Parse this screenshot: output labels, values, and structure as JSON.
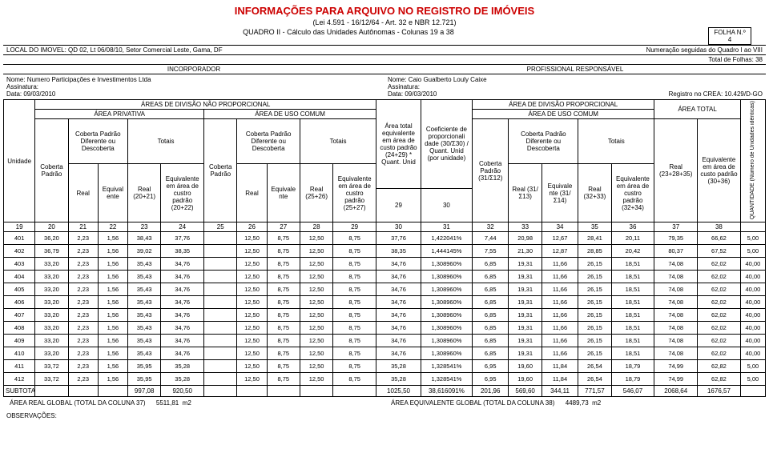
{
  "header": {
    "title": "INFORMAÇÕES PARA ARQUIVO NO REGISTRO DE IMÓVEIS",
    "law": "(Lei 4.591 - 16/12/64 - Art. 32 e NBR 12.721)",
    "quadro": "QUADRO II - Cálculo das Unidades Autônomas - Colunas 19 a 38",
    "folha_label": "FOLHA N.º",
    "folha_num": "4",
    "local": "LOCAL DO IMOVEL: QD 02, Lt 06/08/10, Setor Comercial Leste, Gama, DF",
    "numeracao": "Numeração seguidas do Quadro I ao VIII",
    "total_folhas": "Total de Folhas: 38",
    "incorporador_label": "INCORPORADOR",
    "profissional_label": "PROFISSIONAL RESPONSÁVEL",
    "incorp_nome": "Nome: Numero Participações e Investimentos Ltda",
    "prof_nome": "Nome: Caio Gualberto Louly Caixe",
    "assinatura": "Assinatura:",
    "data": "Data: 09/03/2010",
    "registro": "Registro no CREA: 10.429/D-GO"
  },
  "col_groups": {
    "areas_nao_prop": "ÁREAS DE DIVISÃO NÃO PROPORCIONAL",
    "area_prop": "ÁREA DE DIVISÃO PROPORCIONAL",
    "area_privativa": "ÁREA PRIVATIVA",
    "area_uso_comum": "ÁREA DE USO COMUM",
    "coberta_padrao": "Coberta Padrão Diferente ou Descoberta",
    "totais": "Totais",
    "area_total_eq": "Área total equivalente em área de custo padrão (24+29) * Quant. Unid",
    "coef": "Coeficiente de proporcionali dade (30/Σ30) / Quant. Unid (por unidade)",
    "area_total": "ÁREA TOTAL",
    "quantidade": "QUANTIDADE (Número de Unidades idênticas)"
  },
  "sub_headers": {
    "unidade": "Unidade",
    "coberta_padrao_col": "Coberta Padrão",
    "real": "Real",
    "equival_ente": "Equival ente",
    "real_20_21": "Real (20+21)",
    "eq_custo_20_22": "Equivalente em área de custro padrão (20+22)",
    "equivale_nte": "Equivale nte",
    "real_25_26": "Real (25+26)",
    "eq_custo_25_27": "Equivalente em área de custro padrão (25+27)",
    "coberta_padrao_31_12": "Coberta Padrão (31/Σ12)",
    "real_31_13": "Real (31/Σ13)",
    "equivale_nte_31_14": "Equivale nte (31/Σ14)",
    "real_32_33": "Real (32+33)",
    "eq_custo_32_34": "Equivalente em área de custro padrão (32+34)",
    "real_23_28_35": "Real (23+28+35)",
    "eq_custo_30_36": "Equivalente em área de custo padrão (30+36)"
  },
  "col_nums": [
    "19",
    "20",
    "21",
    "22",
    "23",
    "24",
    "25",
    "26",
    "27",
    "28",
    "29",
    "30",
    "31",
    "32",
    "33",
    "34",
    "35",
    "36",
    "37",
    "38"
  ],
  "rows": [
    [
      "401",
      "36,20",
      "2,23",
      "1,56",
      "38,43",
      "37,76",
      "",
      "12,50",
      "8,75",
      "12,50",
      "8,75",
      "37,76",
      "1,422041%",
      "7,44",
      "20,98",
      "12,67",
      "28,41",
      "20,11",
      "79,35",
      "66,62",
      "5,00"
    ],
    [
      "402",
      "36,79",
      "2,23",
      "1,56",
      "39,02",
      "38,35",
      "",
      "12,50",
      "8,75",
      "12,50",
      "8,75",
      "38,35",
      "1,444145%",
      "7,55",
      "21,30",
      "12,87",
      "28,85",
      "20,42",
      "80,37",
      "67,52",
      "5,00"
    ],
    [
      "403",
      "33,20",
      "2,23",
      "1,56",
      "35,43",
      "34,76",
      "",
      "12,50",
      "8,75",
      "12,50",
      "8,75",
      "34,76",
      "1,308960%",
      "6,85",
      "19,31",
      "11,66",
      "26,15",
      "18,51",
      "74,08",
      "62,02",
      "40,00"
    ],
    [
      "404",
      "33,20",
      "2,23",
      "1,56",
      "35,43",
      "34,76",
      "",
      "12,50",
      "8,75",
      "12,50",
      "8,75",
      "34,76",
      "1,308960%",
      "6,85",
      "19,31",
      "11,66",
      "26,15",
      "18,51",
      "74,08",
      "62,02",
      "40,00"
    ],
    [
      "405",
      "33,20",
      "2,23",
      "1,56",
      "35,43",
      "34,76",
      "",
      "12,50",
      "8,75",
      "12,50",
      "8,75",
      "34,76",
      "1,308960%",
      "6,85",
      "19,31",
      "11,66",
      "26,15",
      "18,51",
      "74,08",
      "62,02",
      "40,00"
    ],
    [
      "406",
      "33,20",
      "2,23",
      "1,56",
      "35,43",
      "34,76",
      "",
      "12,50",
      "8,75",
      "12,50",
      "8,75",
      "34,76",
      "1,308960%",
      "6,85",
      "19,31",
      "11,66",
      "26,15",
      "18,51",
      "74,08",
      "62,02",
      "40,00"
    ],
    [
      "407",
      "33,20",
      "2,23",
      "1,56",
      "35,43",
      "34,76",
      "",
      "12,50",
      "8,75",
      "12,50",
      "8,75",
      "34,76",
      "1,308960%",
      "6,85",
      "19,31",
      "11,66",
      "26,15",
      "18,51",
      "74,08",
      "62,02",
      "40,00"
    ],
    [
      "408",
      "33,20",
      "2,23",
      "1,56",
      "35,43",
      "34,76",
      "",
      "12,50",
      "8,75",
      "12,50",
      "8,75",
      "34,76",
      "1,308960%",
      "6,85",
      "19,31",
      "11,66",
      "26,15",
      "18,51",
      "74,08",
      "62,02",
      "40,00"
    ],
    [
      "409",
      "33,20",
      "2,23",
      "1,56",
      "35,43",
      "34,76",
      "",
      "12,50",
      "8,75",
      "12,50",
      "8,75",
      "34,76",
      "1,308960%",
      "6,85",
      "19,31",
      "11,66",
      "26,15",
      "18,51",
      "74,08",
      "62,02",
      "40,00"
    ],
    [
      "410",
      "33,20",
      "2,23",
      "1,56",
      "35,43",
      "34,76",
      "",
      "12,50",
      "8,75",
      "12,50",
      "8,75",
      "34,76",
      "1,308960%",
      "6,85",
      "19,31",
      "11,66",
      "26,15",
      "18,51",
      "74,08",
      "62,02",
      "40,00"
    ],
    [
      "411",
      "33,72",
      "2,23",
      "1,56",
      "35,95",
      "35,28",
      "",
      "12,50",
      "8,75",
      "12,50",
      "8,75",
      "35,28",
      "1,328541%",
      "6,95",
      "19,60",
      "11,84",
      "26,54",
      "18,79",
      "74,99",
      "62,82",
      "5,00"
    ],
    [
      "412",
      "33,72",
      "2,23",
      "1,56",
      "35,95",
      "35,28",
      "",
      "12,50",
      "8,75",
      "12,50",
      "8,75",
      "35,28",
      "1,328541%",
      "6,95",
      "19,60",
      "11,84",
      "26,54",
      "18,79",
      "74,99",
      "62,82",
      "5,00"
    ]
  ],
  "subtotal": {
    "label": "SUBTOTAL",
    "c23": "997,08",
    "c24": "920,50",
    "c29": "1025,50",
    "c30": "38,616091%",
    "c31": "201,96",
    "c32": "569,60",
    "c33": "344,11",
    "c34": "771,57",
    "c35": "546,07",
    "c36": "2068,64",
    "c37": "1676,57"
  },
  "footer": {
    "area_real_label": "ÁREA REAL GLOBAL (TOTAL DA COLUNA 37)",
    "area_real_val": "5511,81",
    "m2": "m2",
    "area_eq_label": "ÁREA EQUIVALENTE GLOBAL (TOTAL DA COLUNA 38)",
    "area_eq_val": "4489,73",
    "obs": "OBSERVAÇÕES:"
  },
  "style": {
    "title_color": "#cc0000",
    "border_color": "#000000",
    "bg": "#ffffff"
  }
}
